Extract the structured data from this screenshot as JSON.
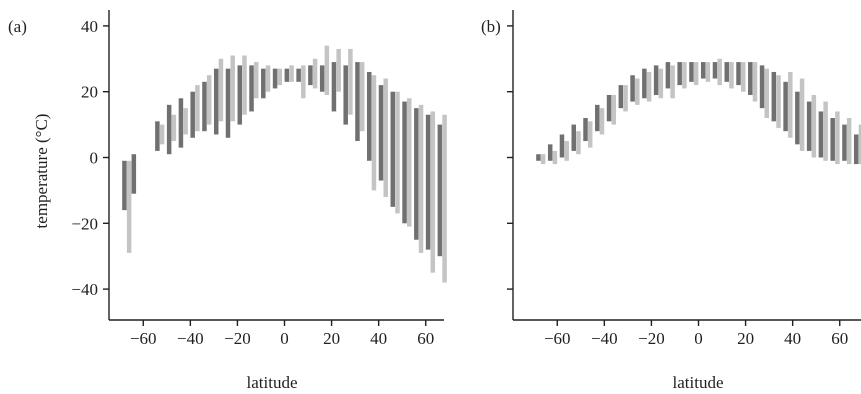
{
  "figure": {
    "y_axis_title": "temperature (°C)",
    "colors": {
      "dark": "#707070",
      "light": "#c4c4c4",
      "axis": "#231f20"
    }
  },
  "chart_data": [
    {
      "type": "range-bar",
      "panel_label": "(a)",
      "xlabel": "latitude",
      "ylabel": "temperature (°C)",
      "xlim": [
        -72,
        72
      ],
      "ylim": [
        -50,
        45
      ],
      "x_ticks": [
        -60,
        -40,
        -20,
        0,
        20,
        40,
        60
      ],
      "x_tick_labels": [
        "−60",
        "−40",
        "−20",
        "0",
        "20",
        "40",
        "60"
      ],
      "y_ticks": [
        -40,
        -20,
        0,
        20,
        40
      ],
      "y_tick_labels": [
        "−40",
        "−20",
        "0",
        "20",
        "40"
      ],
      "bars": [
        {
          "x": -68,
          "low": -16,
          "high": -1,
          "shade": "dark"
        },
        {
          "x": -66,
          "low": -29,
          "high": -1,
          "shade": "light"
        },
        {
          "x": -64,
          "low": -11,
          "high": 1,
          "shade": "dark"
        },
        {
          "x": -54,
          "low": 2,
          "high": 11,
          "shade": "dark"
        },
        {
          "x": -52,
          "low": 4,
          "high": 10,
          "shade": "light"
        },
        {
          "x": -49,
          "low": 1,
          "high": 16,
          "shade": "dark"
        },
        {
          "x": -47,
          "low": 5,
          "high": 13,
          "shade": "light"
        },
        {
          "x": -44,
          "low": 3,
          "high": 18,
          "shade": "dark"
        },
        {
          "x": -42,
          "low": 7,
          "high": 15,
          "shade": "light"
        },
        {
          "x": -39,
          "low": 6,
          "high": 20,
          "shade": "dark"
        },
        {
          "x": -37,
          "low": 8,
          "high": 22,
          "shade": "light"
        },
        {
          "x": -34,
          "low": 8,
          "high": 23,
          "shade": "dark"
        },
        {
          "x": -32,
          "low": 10,
          "high": 25,
          "shade": "light"
        },
        {
          "x": -29,
          "low": 7,
          "high": 27,
          "shade": "dark"
        },
        {
          "x": -27,
          "low": 11,
          "high": 30,
          "shade": "light"
        },
        {
          "x": -24,
          "low": 6,
          "high": 27,
          "shade": "dark"
        },
        {
          "x": -22,
          "low": 11,
          "high": 31,
          "shade": "light"
        },
        {
          "x": -19,
          "low": 10,
          "high": 28,
          "shade": "dark"
        },
        {
          "x": -17,
          "low": 13,
          "high": 31,
          "shade": "light"
        },
        {
          "x": -14,
          "low": 14,
          "high": 28,
          "shade": "dark"
        },
        {
          "x": -12,
          "low": 18,
          "high": 29,
          "shade": "light"
        },
        {
          "x": -9,
          "low": 18,
          "high": 27,
          "shade": "dark"
        },
        {
          "x": -7,
          "low": 20,
          "high": 28,
          "shade": "light"
        },
        {
          "x": -4,
          "low": 21,
          "high": 27,
          "shade": "dark"
        },
        {
          "x": -2,
          "low": 22,
          "high": 27,
          "shade": "light"
        },
        {
          "x": 1,
          "low": 23,
          "high": 27,
          "shade": "dark"
        },
        {
          "x": 3,
          "low": 23,
          "high": 28,
          "shade": "light"
        },
        {
          "x": 6,
          "low": 23,
          "high": 27,
          "shade": "dark"
        },
        {
          "x": 8,
          "low": 18,
          "high": 28,
          "shade": "light"
        },
        {
          "x": 11,
          "low": 22,
          "high": 28,
          "shade": "dark"
        },
        {
          "x": 13,
          "low": 21,
          "high": 30,
          "shade": "light"
        },
        {
          "x": 16,
          "low": 20,
          "high": 28,
          "shade": "dark"
        },
        {
          "x": 18,
          "low": 19,
          "high": 34,
          "shade": "light"
        },
        {
          "x": 21,
          "low": 14,
          "high": 29,
          "shade": "dark"
        },
        {
          "x": 23,
          "low": 20,
          "high": 33,
          "shade": "light"
        },
        {
          "x": 26,
          "low": 10,
          "high": 28,
          "shade": "dark"
        },
        {
          "x": 28,
          "low": 13,
          "high": 33,
          "shade": "light"
        },
        {
          "x": 31,
          "low": 5,
          "high": 29,
          "shade": "dark"
        },
        {
          "x": 33,
          "low": 8,
          "high": 29,
          "shade": "light"
        },
        {
          "x": 36,
          "low": -1,
          "high": 26,
          "shade": "dark"
        },
        {
          "x": 38,
          "low": -10,
          "high": 25,
          "shade": "light"
        },
        {
          "x": 41,
          "low": -7,
          "high": 22,
          "shade": "dark"
        },
        {
          "x": 43,
          "low": -12,
          "high": 24,
          "shade": "light"
        },
        {
          "x": 46,
          "low": -15,
          "high": 20,
          "shade": "dark"
        },
        {
          "x": 48,
          "low": -17,
          "high": 20,
          "shade": "light"
        },
        {
          "x": 51,
          "low": -20,
          "high": 17,
          "shade": "dark"
        },
        {
          "x": 53,
          "low": -21,
          "high": 18,
          "shade": "light"
        },
        {
          "x": 56,
          "low": -25,
          "high": 15,
          "shade": "dark"
        },
        {
          "x": 58,
          "low": -29,
          "high": 16,
          "shade": "light"
        },
        {
          "x": 61,
          "low": -28,
          "high": 13,
          "shade": "dark"
        },
        {
          "x": 63,
          "low": -35,
          "high": 14,
          "shade": "light"
        },
        {
          "x": 66,
          "low": -30,
          "high": 10,
          "shade": "dark"
        },
        {
          "x": 68,
          "low": -38,
          "high": 13,
          "shade": "light"
        }
      ]
    },
    {
      "type": "range-bar",
      "panel_label": "(b)",
      "xlabel": "latitude",
      "ylabel": "",
      "xlim": [
        -72,
        72
      ],
      "ylim": [
        -50,
        45
      ],
      "x_ticks": [
        -60,
        -40,
        -20,
        0,
        20,
        40,
        60
      ],
      "x_tick_labels": [
        "−60",
        "−40",
        "−20",
        "0",
        "20",
        "40",
        "60"
      ],
      "y_ticks": [
        -40,
        -20,
        0,
        20,
        40
      ],
      "y_tick_labels": [],
      "bars": [
        {
          "x": -68,
          "low": -1,
          "high": 1,
          "shade": "dark"
        },
        {
          "x": -66,
          "low": -2,
          "high": 1,
          "shade": "light"
        },
        {
          "x": -63,
          "low": -1,
          "high": 4,
          "shade": "dark"
        },
        {
          "x": -61,
          "low": -2,
          "high": 2,
          "shade": "light"
        },
        {
          "x": -58,
          "low": 0,
          "high": 7,
          "shade": "dark"
        },
        {
          "x": -56,
          "low": -1,
          "high": 5,
          "shade": "light"
        },
        {
          "x": -53,
          "low": 2,
          "high": 10,
          "shade": "dark"
        },
        {
          "x": -51,
          "low": 1,
          "high": 8,
          "shade": "light"
        },
        {
          "x": -48,
          "low": 5,
          "high": 12,
          "shade": "dark"
        },
        {
          "x": -46,
          "low": 3,
          "high": 11,
          "shade": "light"
        },
        {
          "x": -43,
          "low": 8,
          "high": 16,
          "shade": "dark"
        },
        {
          "x": -41,
          "low": 7,
          "high": 15,
          "shade": "light"
        },
        {
          "x": -38,
          "low": 11,
          "high": 19,
          "shade": "dark"
        },
        {
          "x": -36,
          "low": 10,
          "high": 19,
          "shade": "light"
        },
        {
          "x": -33,
          "low": 15,
          "high": 22,
          "shade": "dark"
        },
        {
          "x": -31,
          "low": 14,
          "high": 22,
          "shade": "light"
        },
        {
          "x": -28,
          "low": 17,
          "high": 25,
          "shade": "dark"
        },
        {
          "x": -26,
          "low": 16,
          "high": 24,
          "shade": "light"
        },
        {
          "x": -23,
          "low": 18,
          "high": 27,
          "shade": "dark"
        },
        {
          "x": -21,
          "low": 17,
          "high": 26,
          "shade": "light"
        },
        {
          "x": -18,
          "low": 19,
          "high": 28,
          "shade": "dark"
        },
        {
          "x": -16,
          "low": 18,
          "high": 27,
          "shade": "light"
        },
        {
          "x": -13,
          "low": 21,
          "high": 29,
          "shade": "dark"
        },
        {
          "x": -11,
          "low": 18,
          "high": 28,
          "shade": "light"
        },
        {
          "x": -8,
          "low": 22,
          "high": 29,
          "shade": "dark"
        },
        {
          "x": -6,
          "low": 21,
          "high": 29,
          "shade": "light"
        },
        {
          "x": -3,
          "low": 23,
          "high": 29,
          "shade": "dark"
        },
        {
          "x": -1,
          "low": 22,
          "high": 29,
          "shade": "light"
        },
        {
          "x": 2,
          "low": 24,
          "high": 29,
          "shade": "dark"
        },
        {
          "x": 4,
          "low": 23,
          "high": 29,
          "shade": "light"
        },
        {
          "x": 7,
          "low": 24,
          "high": 29,
          "shade": "dark"
        },
        {
          "x": 9,
          "low": 22,
          "high": 30,
          "shade": "light"
        },
        {
          "x": 12,
          "low": 23,
          "high": 29,
          "shade": "dark"
        },
        {
          "x": 14,
          "low": 21,
          "high": 29,
          "shade": "light"
        },
        {
          "x": 17,
          "low": 22,
          "high": 29,
          "shade": "dark"
        },
        {
          "x": 19,
          "low": 20,
          "high": 29,
          "shade": "light"
        },
        {
          "x": 22,
          "low": 19,
          "high": 29,
          "shade": "dark"
        },
        {
          "x": 24,
          "low": 17,
          "high": 29,
          "shade": "light"
        },
        {
          "x": 27,
          "low": 15,
          "high": 28,
          "shade": "dark"
        },
        {
          "x": 29,
          "low": 12,
          "high": 27,
          "shade": "light"
        },
        {
          "x": 32,
          "low": 11,
          "high": 26,
          "shade": "dark"
        },
        {
          "x": 34,
          "low": 9,
          "high": 25,
          "shade": "light"
        },
        {
          "x": 37,
          "low": 8,
          "high": 23,
          "shade": "dark"
        },
        {
          "x": 39,
          "low": 6,
          "high": 26,
          "shade": "light"
        },
        {
          "x": 42,
          "low": 4,
          "high": 20,
          "shade": "dark"
        },
        {
          "x": 44,
          "low": 2,
          "high": 24,
          "shade": "light"
        },
        {
          "x": 47,
          "low": 2,
          "high": 17,
          "shade": "dark"
        },
        {
          "x": 49,
          "low": 0,
          "high": 19,
          "shade": "light"
        },
        {
          "x": 52,
          "low": 0,
          "high": 14,
          "shade": "dark"
        },
        {
          "x": 54,
          "low": -1,
          "high": 17,
          "shade": "light"
        },
        {
          "x": 57,
          "low": -1,
          "high": 12,
          "shade": "dark"
        },
        {
          "x": 59,
          "low": -2,
          "high": 14,
          "shade": "light"
        },
        {
          "x": 62,
          "low": -1,
          "high": 10,
          "shade": "dark"
        },
        {
          "x": 64,
          "low": -2,
          "high": 12,
          "shade": "light"
        },
        {
          "x": 67,
          "low": -2,
          "high": 7,
          "shade": "dark"
        },
        {
          "x": 69,
          "low": -2,
          "high": 10,
          "shade": "light"
        }
      ]
    }
  ]
}
